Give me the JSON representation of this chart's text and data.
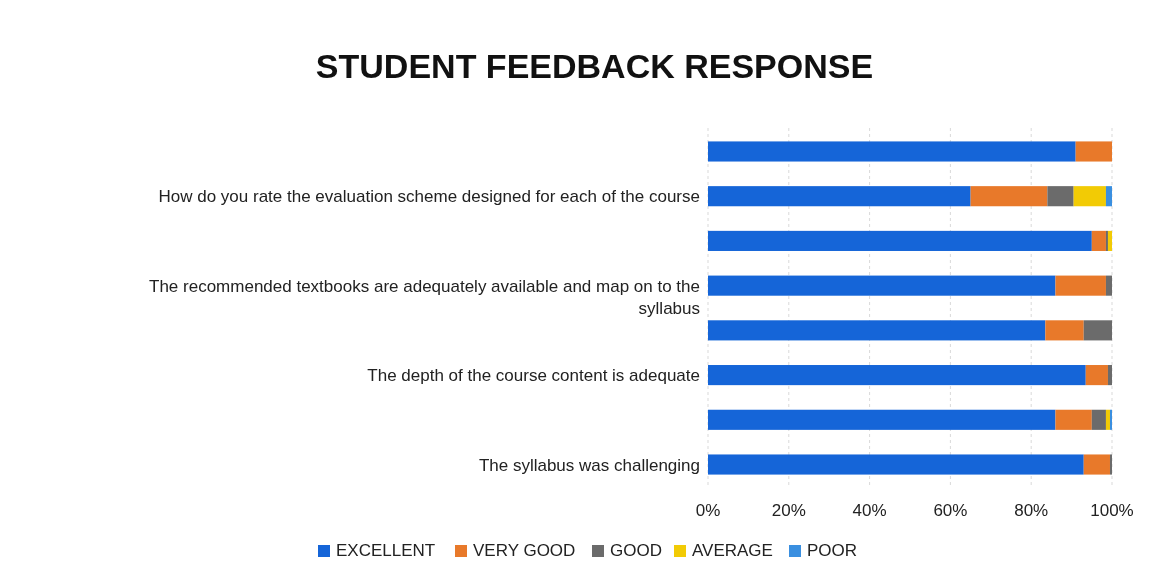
{
  "chart_data": {
    "type": "bar",
    "orientation": "horizontal",
    "stacked": true,
    "title": "STUDENT FEEDBACK RESPONSE",
    "categories": [
      null,
      "How do you rate the evaluation scheme designed for each of the course",
      null,
      "The recommended textbooks are adequately available and map on to the syllabus",
      null,
      "The depth of the course content is adequate",
      null,
      "The syllabus was challenging"
    ],
    "series": [
      {
        "name": "EXCELLENT",
        "color": "#1565d8",
        "values": [
          91,
          65,
          95,
          86,
          83.5,
          93.5,
          86,
          93
        ]
      },
      {
        "name": "VERY GOOD",
        "color": "#e8792a",
        "values": [
          9,
          19,
          3.5,
          12.5,
          9.5,
          5.5,
          9,
          6.5
        ]
      },
      {
        "name": "GOOD",
        "color": "#6b6b6b",
        "values": [
          0,
          6.5,
          0.5,
          1.5,
          7,
          1,
          3.5,
          0.5
        ]
      },
      {
        "name": "AVERAGE",
        "color": "#f2cb05",
        "values": [
          0,
          8,
          1,
          0,
          0,
          0,
          1,
          0
        ]
      },
      {
        "name": "POOR",
        "color": "#3a8fe0",
        "values": [
          0,
          1.5,
          0,
          0,
          0,
          0,
          0.5,
          0
        ]
      }
    ],
    "xlim": [
      0,
      100
    ],
    "xticks": [
      {
        "value": 0,
        "label": "0%"
      },
      {
        "value": 20,
        "label": "20%"
      },
      {
        "value": 40,
        "label": "40%"
      },
      {
        "value": 60,
        "label": "60%"
      },
      {
        "value": 80,
        "label": "80%"
      },
      {
        "value": 100,
        "label": "100%"
      }
    ],
    "grid": "x",
    "legend": "bottom"
  }
}
